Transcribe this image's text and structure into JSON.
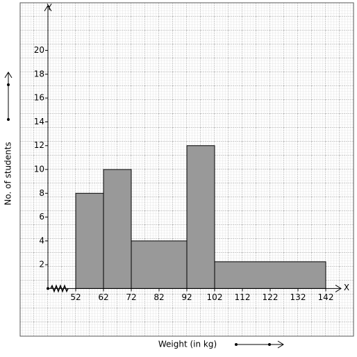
{
  "chart_data": {
    "type": "histogram",
    "x_label": "Weight (in kg)",
    "y_label": "No. of students",
    "x_axis_name": "X",
    "y_axis_name": "Y",
    "bins": [
      52,
      62,
      72,
      92,
      102,
      142
    ],
    "values": [
      8,
      10,
      4,
      12,
      2.25
    ],
    "color": "#999999",
    "xlim": [
      32,
      152
    ],
    "ylim": [
      -4,
      24
    ],
    "xticks": [
      52,
      62,
      72,
      82,
      92,
      102,
      112,
      122,
      132,
      142
    ],
    "yticks": [
      2,
      4,
      6,
      8,
      10,
      12,
      14,
      16,
      18,
      20
    ]
  }
}
